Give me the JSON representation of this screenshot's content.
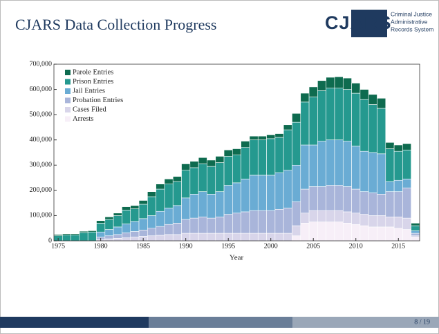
{
  "slide": {
    "title": "CJARS Data Collection Progress",
    "logo": {
      "mark": "CJARS",
      "lines": [
        "Criminal Justice",
        "Administrative",
        "Records System"
      ]
    },
    "page": "8 / 19"
  },
  "chart_data": {
    "type": "stacked_bar",
    "xlabel": "Year",
    "x": [
      1975,
      1976,
      1977,
      1978,
      1979,
      1980,
      1981,
      1982,
      1983,
      1984,
      1985,
      1986,
      1987,
      1988,
      1989,
      1990,
      1991,
      1992,
      1993,
      1994,
      1995,
      1996,
      1997,
      1998,
      1999,
      2000,
      2001,
      2002,
      2003,
      2004,
      2005,
      2006,
      2007,
      2008,
      2009,
      2010,
      2011,
      2012,
      2013,
      2014,
      2015,
      2016,
      2017
    ],
    "series": [
      {
        "name": "Arrests",
        "color": "#f7eff8",
        "values": [
          0,
          0,
          0,
          0,
          0,
          0,
          0,
          0,
          0,
          0,
          0,
          0,
          0,
          0,
          0,
          0,
          0,
          0,
          0,
          0,
          0,
          0,
          0,
          0,
          0,
          0,
          0,
          0,
          20000,
          70000,
          75000,
          75000,
          75000,
          75000,
          70000,
          65000,
          60000,
          55000,
          55000,
          55000,
          50000,
          45000,
          15000
        ]
      },
      {
        "name": "Cases Filed",
        "color": "#d8d5ea",
        "values": [
          0,
          0,
          0,
          0,
          0,
          5000,
          8000,
          10000,
          12000,
          15000,
          18000,
          20000,
          22000,
          25000,
          25000,
          30000,
          30000,
          30000,
          30000,
          30000,
          30000,
          30000,
          30000,
          30000,
          30000,
          30000,
          30000,
          30000,
          40000,
          40000,
          45000,
          45000,
          45000,
          45000,
          45000,
          45000,
          45000,
          45000,
          45000,
          40000,
          45000,
          45000,
          5000
        ]
      },
      {
        "name": "Probation Entries",
        "color": "#a9b5da",
        "values": [
          0,
          0,
          0,
          0,
          0,
          10000,
          12000,
          15000,
          20000,
          22000,
          25000,
          30000,
          35000,
          40000,
          45000,
          55000,
          60000,
          65000,
          60000,
          65000,
          75000,
          80000,
          85000,
          90000,
          90000,
          90000,
          95000,
          100000,
          95000,
          95000,
          95000,
          95000,
          100000,
          100000,
          100000,
          95000,
          90000,
          90000,
          85000,
          100000,
          100000,
          120000,
          10000
        ]
      },
      {
        "name": "Jail Entries",
        "color": "#6aacd4",
        "values": [
          0,
          0,
          0,
          0,
          0,
          20000,
          25000,
          30000,
          35000,
          40000,
          45000,
          50000,
          60000,
          65000,
          70000,
          85000,
          95000,
          100000,
          95000,
          100000,
          115000,
          120000,
          130000,
          140000,
          140000,
          140000,
          145000,
          150000,
          145000,
          175000,
          165000,
          180000,
          180000,
          180000,
          180000,
          170000,
          160000,
          160000,
          160000,
          40000,
          45000,
          35000,
          10000
        ]
      },
      {
        "name": "Prison Entries",
        "color": "#25998f",
        "values": [
          20000,
          23000,
          23000,
          33000,
          35000,
          35000,
          40000,
          45000,
          55000,
          50000,
          57000,
          75000,
          88000,
          95000,
          95000,
          110000,
          105000,
          110000,
          110000,
          115000,
          115000,
          110000,
          125000,
          140000,
          140000,
          145000,
          140000,
          160000,
          170000,
          170000,
          190000,
          200000,
          205000,
          205000,
          205000,
          210000,
          205000,
          190000,
          180000,
          130000,
          115000,
          115000,
          20000
        ]
      },
      {
        "name": "Parole Entries",
        "color": "#0e6b4f",
        "values": [
          5000,
          5000,
          5000,
          5000,
          5000,
          10000,
          10000,
          10000,
          13000,
          13000,
          15000,
          20000,
          20000,
          20000,
          20000,
          25000,
          25000,
          25000,
          25000,
          25000,
          25000,
          25000,
          25000,
          15000,
          15000,
          15000,
          15000,
          20000,
          35000,
          35000,
          40000,
          40000,
          43000,
          45000,
          45000,
          40000,
          40000,
          40000,
          40000,
          25000,
          25000,
          25000,
          10000
        ]
      }
    ],
    "xlim": [
      1974.5,
      2017.5
    ],
    "xticks": [
      1975,
      1980,
      1985,
      1990,
      1995,
      2000,
      2005,
      2010,
      2015
    ],
    "ylim": [
      0,
      700000
    ],
    "yticks": [
      0,
      {
        "value": 100000,
        "label": "100,000"
      },
      {
        "value": 200000,
        "label": "200,000"
      },
      {
        "value": 300000,
        "label": "300,000"
      },
      {
        "value": 400000,
        "label": "400,000"
      },
      {
        "value": 500000,
        "label": "500,000"
      },
      {
        "value": 600000,
        "label": "600,000"
      },
      {
        "value": 700000,
        "label": "700,000"
      }
    ],
    "legend": "upper left"
  }
}
